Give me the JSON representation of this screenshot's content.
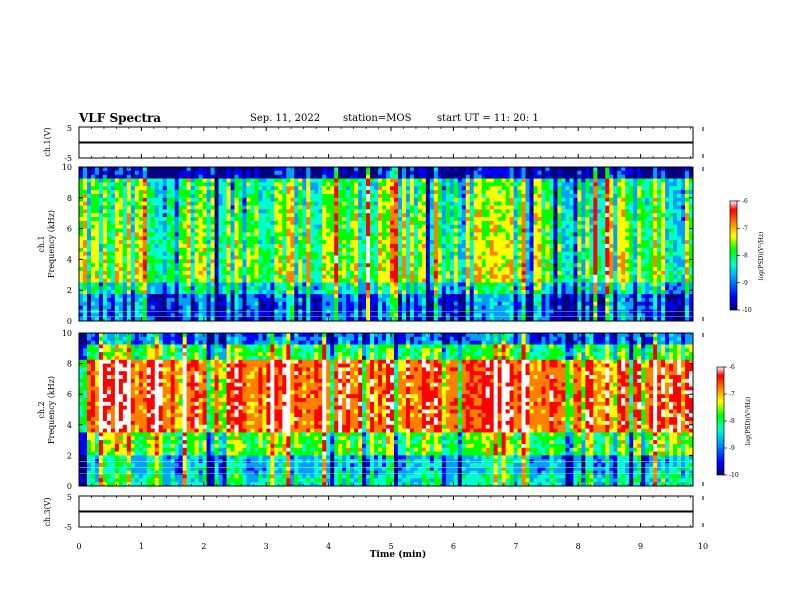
{
  "header": {
    "title": "VLF Spectra",
    "date": "Sep. 11, 2022",
    "station": "station=MOS",
    "start": "start  UT  =   11: 20: 1"
  },
  "chart_data": [
    {
      "id": "ch1_waveform",
      "type": "line",
      "ylabel": "ch.1(V)",
      "ylim": [
        -5,
        5
      ],
      "yticks": [
        "5",
        "-5"
      ],
      "x": [
        0,
        10
      ],
      "values": [
        0,
        0
      ]
    },
    {
      "id": "ch1_spectrogram",
      "type": "heatmap",
      "ylabel_line1": "ch.1",
      "ylabel_line2": "Frequency (kHz)",
      "xlim": [
        0,
        10
      ],
      "ylim": [
        0,
        10
      ],
      "yticks": [
        "0",
        "2",
        "4",
        "6",
        "8",
        "10"
      ],
      "colorbar": {
        "label": "log(PSD)(V²/Hz)",
        "range": [
          -10,
          -6
        ],
        "ticks": [
          "-6",
          "-7",
          "-8",
          "-9",
          "-10"
        ]
      }
    },
    {
      "id": "ch2_spectrogram",
      "type": "heatmap",
      "ylabel_line1": "ch.2",
      "ylabel_line2": "Frequency (kHz)",
      "xlim": [
        0,
        10
      ],
      "ylim": [
        0,
        10
      ],
      "yticks": [
        "0",
        "2",
        "4",
        "6",
        "8",
        "10"
      ],
      "colorbar": {
        "label": "log(PSD)(V²/Hz)",
        "range": [
          -10,
          -6
        ],
        "ticks": [
          "-6",
          "-7",
          "-8",
          "-9",
          "-10"
        ]
      }
    },
    {
      "id": "ch3_waveform",
      "type": "line",
      "ylabel": "ch.3(V)",
      "ylim": [
        -5,
        5
      ],
      "yticks": [
        "5",
        "-5"
      ],
      "x": [
        0,
        10
      ],
      "values": [
        0,
        0
      ]
    }
  ],
  "xaxis": {
    "label": "Time (min)",
    "ticks": [
      "0",
      "1",
      "2",
      "3",
      "4",
      "5",
      "6",
      "7",
      "8",
      "9",
      "10"
    ]
  },
  "colors": {
    "colormap": [
      "#000080",
      "#0000ff",
      "#00a0ff",
      "#00ffcc",
      "#00ff00",
      "#ffff00",
      "#ff8000",
      "#ff0000",
      "#ffffff"
    ]
  }
}
